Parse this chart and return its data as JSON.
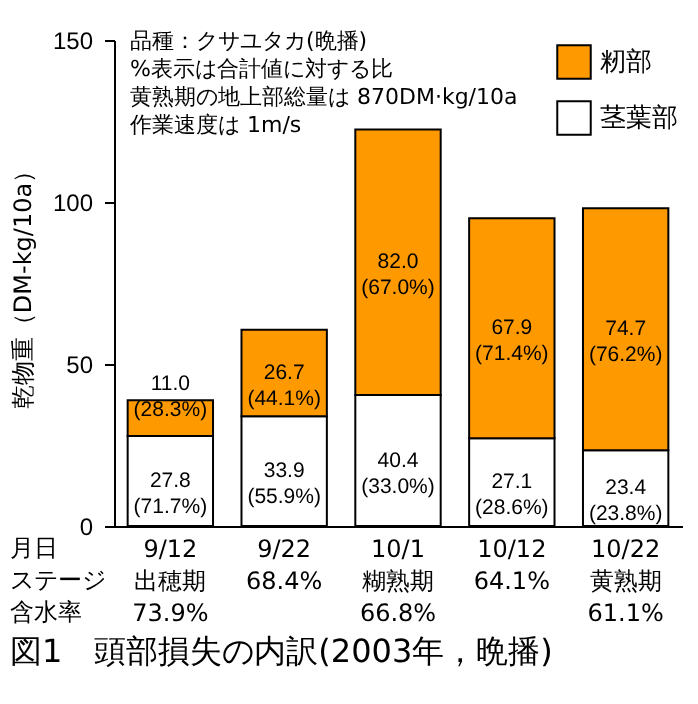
{
  "chart_data": {
    "type": "bar",
    "title": "図1　頭部損失の内訳(2003年，晩播)",
    "categories": [
      "9/12\n出穂期\n73.9%",
      "9/22\n\n68.4%",
      "10/1\n糊熟期\n66.8%",
      "10/12\n\n64.1%",
      "10/22\n黄熟期\n61.1%"
    ],
    "ylabel": "乾物重（DM-kg/10a）",
    "stacked": true,
    "series": [
      {
        "name": "茎葉部",
        "color": "#ffffff",
        "values": [
          27.8,
          33.9,
          40.4,
          27.1,
          23.4
        ],
        "value_labels": [
          "27.8\n(71.7%)",
          "33.9\n(55.9%)",
          "40.4\n(33.0%)",
          "27.1\n(28.6%)",
          "23.4\n(23.8%)"
        ]
      },
      {
        "name": "籾部",
        "color": "#ff9900",
        "values": [
          11.0,
          26.7,
          82.0,
          67.9,
          74.7
        ],
        "value_labels": [
          "11.0\n(28.3%)",
          "26.7\n(44.1%)",
          "82.0\n(67.0%)",
          "67.9\n(71.4%)",
          "74.7\n(76.2%)"
        ]
      }
    ],
    "ylim": [
      0,
      150
    ],
    "yticks": [
      0,
      50,
      100,
      150
    ],
    "grid": false,
    "legend": "top right",
    "annotations": [
      "品種：クサユタカ(晩播)",
      "%表示は合計値に対する比",
      "黄熟期の地上部総量は 870DM·kg/10a",
      "作業速度は 1m/s",
      "月日",
      "ステージ",
      "含水率"
    ]
  }
}
